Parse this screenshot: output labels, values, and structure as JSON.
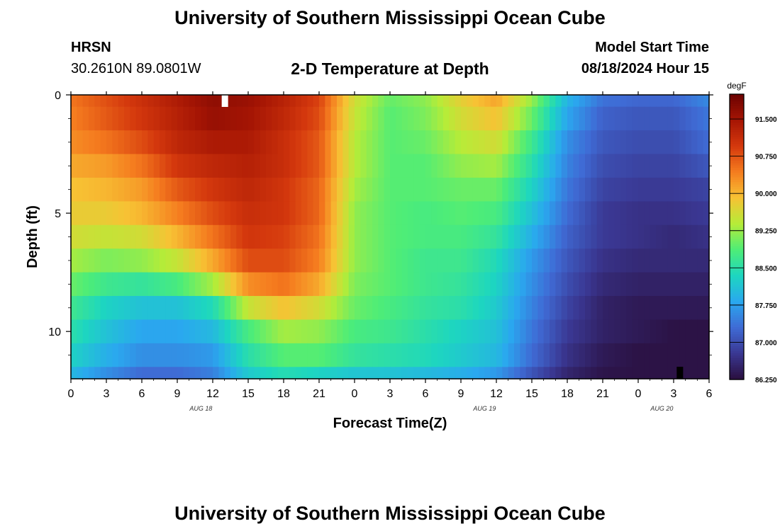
{
  "header": {
    "title": "University of Southern Mississippi Ocean Cube",
    "station": "HRSN",
    "location": "30.2610N  89.0801W",
    "plot_title": "2-D Temperature at Depth",
    "model_start_label": "Model Start Time",
    "model_start_value": "08/18/2024 Hour 15"
  },
  "footer": {
    "title": "University of Southern Mississippi Ocean Cube"
  },
  "chart_data": {
    "type": "heatmap",
    "title": "2-D Temperature at Depth",
    "xlabel": "Forecast Time(Z)",
    "ylabel": "Depth (ft)",
    "x_ticks": [
      "0",
      "3",
      "6",
      "9",
      "12",
      "15",
      "18",
      "21",
      "0",
      "3",
      "6",
      "9",
      "12",
      "15",
      "18",
      "21",
      "0",
      "3",
      "6"
    ],
    "date_labels": [
      {
        "text": "AUG 18",
        "hour": 11
      },
      {
        "text": "AUG 19",
        "hour": 35
      },
      {
        "text": "AUG 20",
        "hour": 50
      }
    ],
    "x_range_hours": [
      0,
      54
    ],
    "y_ticks": [
      "0",
      "5",
      "10"
    ],
    "y_range_ft": [
      0,
      12
    ],
    "colorbar": {
      "unit": "degF",
      "min": 86.25,
      "max": 92.0,
      "labels": [
        "91.500",
        "90.750",
        "90.000",
        "89.250",
        "88.500",
        "87.750",
        "87.000",
        "86.250"
      ],
      "colors": [
        "#2a0f3e",
        "#3a3792",
        "#3f6bd5",
        "#2aa8ef",
        "#1dd6c0",
        "#4eed77",
        "#b6ec38",
        "#f7c234",
        "#f57c1f",
        "#d4380d",
        "#a51504",
        "#6b0202"
      ]
    },
    "depth_levels_ft": [
      0,
      1,
      2,
      3,
      4,
      5,
      6,
      7,
      8,
      9,
      10,
      11,
      12
    ],
    "forecast_hours": [
      0,
      3,
      6,
      9,
      12,
      15,
      18,
      21,
      24,
      27,
      30,
      33,
      36,
      39,
      42,
      45,
      48,
      51,
      54
    ],
    "temperatures_degF": [
      [
        90.5,
        90.8,
        91.1,
        91.4,
        91.7,
        91.6,
        91.3,
        90.9,
        89.6,
        89.0,
        89.2,
        89.8,
        90.2,
        89.3,
        88.0,
        87.4,
        87.3,
        87.3,
        87.6
      ],
      [
        90.4,
        90.7,
        91.0,
        91.3,
        91.6,
        91.5,
        91.2,
        90.8,
        89.5,
        88.9,
        89.1,
        89.6,
        89.9,
        89.0,
        87.8,
        87.2,
        87.1,
        87.1,
        87.4
      ],
      [
        90.3,
        90.5,
        90.8,
        91.2,
        91.4,
        91.4,
        91.1,
        90.7,
        89.4,
        88.9,
        89.0,
        89.4,
        89.6,
        88.7,
        87.6,
        87.1,
        87.0,
        87.0,
        87.3
      ],
      [
        90.1,
        90.2,
        90.5,
        91.0,
        91.2,
        91.3,
        91.1,
        90.7,
        89.4,
        88.9,
        88.9,
        89.2,
        89.3,
        88.5,
        87.5,
        87.0,
        86.9,
        86.9,
        87.1
      ],
      [
        89.9,
        90.0,
        90.2,
        90.7,
        91.0,
        91.2,
        91.0,
        90.6,
        89.3,
        88.9,
        88.9,
        89.0,
        89.0,
        88.3,
        87.4,
        86.9,
        86.8,
        86.8,
        86.9
      ],
      [
        89.8,
        89.8,
        90.0,
        90.4,
        90.8,
        91.1,
        91.0,
        90.6,
        89.2,
        88.9,
        88.8,
        88.9,
        88.8,
        88.1,
        87.3,
        86.8,
        86.7,
        86.7,
        86.8
      ],
      [
        89.6,
        89.5,
        89.6,
        90.0,
        90.5,
        91.0,
        90.9,
        90.5,
        89.2,
        88.9,
        88.8,
        88.8,
        88.6,
        87.9,
        87.2,
        86.8,
        86.7,
        86.6,
        86.7
      ],
      [
        89.3,
        89.1,
        89.2,
        89.5,
        90.1,
        90.8,
        90.8,
        90.4,
        89.2,
        88.9,
        88.7,
        88.7,
        88.4,
        87.7,
        87.1,
        86.7,
        86.6,
        86.6,
        86.6
      ],
      [
        89.0,
        88.7,
        88.6,
        88.8,
        89.3,
        90.3,
        90.5,
        90.1,
        89.1,
        88.9,
        88.7,
        88.6,
        88.3,
        87.6,
        87.0,
        86.6,
        86.5,
        86.5,
        86.5
      ],
      [
        88.7,
        88.3,
        88.1,
        88.1,
        88.4,
        89.5,
        89.9,
        89.6,
        89.0,
        88.8,
        88.6,
        88.5,
        88.2,
        87.5,
        86.9,
        86.5,
        86.4,
        86.4,
        86.4
      ],
      [
        88.5,
        88.1,
        87.8,
        87.8,
        88.0,
        88.8,
        89.3,
        89.2,
        88.8,
        88.7,
        88.5,
        88.3,
        88.1,
        87.4,
        86.8,
        86.5,
        86.4,
        86.3,
        86.3
      ],
      [
        88.3,
        87.9,
        87.6,
        87.6,
        87.7,
        88.5,
        88.9,
        88.9,
        88.6,
        88.5,
        88.4,
        88.2,
        88.0,
        87.3,
        86.7,
        86.4,
        86.3,
        86.3,
        86.3
      ],
      [
        87.9,
        87.5,
        87.2,
        87.2,
        87.4,
        88.1,
        88.3,
        88.1,
        88.0,
        88.0,
        87.9,
        87.8,
        87.6,
        87.0,
        86.5,
        86.3,
        86.3,
        86.3,
        86.3
      ]
    ],
    "markers": [
      {
        "name": "max",
        "color": "#ffffff",
        "hour": 13,
        "depth_ft": 0
      },
      {
        "name": "min",
        "color": "#000000",
        "hour": 51.5,
        "depth_ft": 12
      }
    ]
  }
}
